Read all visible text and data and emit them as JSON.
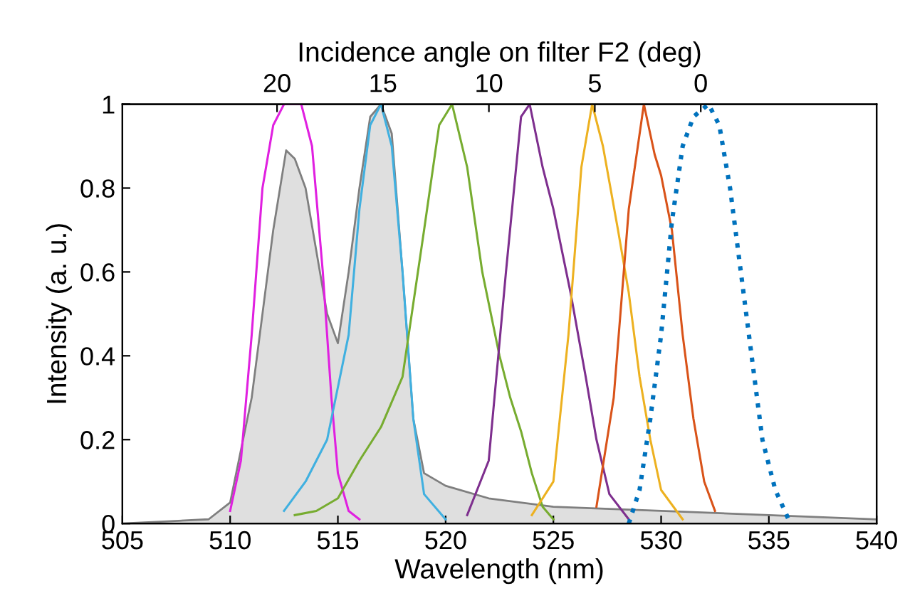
{
  "chart_data": {
    "type": "line",
    "xlabel": "Wavelength (nm)",
    "ylabel": "Intensity (a. u.)",
    "x2label": "Incidence angle on filter F2 (deg)",
    "xlim": [
      505,
      540
    ],
    "xticks": [
      505,
      510,
      515,
      520,
      525,
      530,
      535,
      540
    ],
    "ylim": [
      0,
      1
    ],
    "yticks": [
      0,
      0.2,
      0.4,
      0.6,
      0.8,
      1
    ],
    "x2lim": [
      27.3,
      -8.3
    ],
    "x2ticks": [
      20,
      15,
      10,
      5,
      0
    ],
    "grid": false,
    "series": [
      {
        "type": "area",
        "color": "#7f7f7f",
        "x": [
          505,
          509,
          510,
          511,
          512,
          512.6,
          513,
          513.5,
          514,
          514.5,
          515,
          515.5,
          516,
          516.5,
          517,
          517.5,
          518,
          518.5,
          519,
          520,
          522,
          525,
          530,
          535,
          540
        ],
        "values": [
          0,
          0.01,
          0.05,
          0.3,
          0.7,
          0.89,
          0.87,
          0.8,
          0.65,
          0.5,
          0.43,
          0.6,
          0.8,
          0.97,
          1,
          0.93,
          0.6,
          0.25,
          0.12,
          0.09,
          0.06,
          0.04,
          0.03,
          0.02,
          0.01
        ]
      },
      {
        "color": "#e020e0",
        "x": [
          510,
          510.5,
          511,
          511.5,
          512,
          512.5,
          513.3,
          513.8,
          514.3,
          514.7,
          515,
          515.5,
          516
        ],
        "values": [
          0.03,
          0.15,
          0.45,
          0.8,
          0.95,
          1,
          1,
          0.9,
          0.6,
          0.3,
          0.12,
          0.03,
          0.01
        ]
      },
      {
        "color": "#40b0e0",
        "x": [
          512.5,
          513.5,
          514.5,
          515.5,
          516,
          516.5,
          517,
          517.5,
          518,
          518.5,
          519,
          520
        ],
        "values": [
          0.03,
          0.1,
          0.2,
          0.45,
          0.75,
          0.95,
          1,
          0.9,
          0.6,
          0.25,
          0.07,
          0.01
        ]
      },
      {
        "color": "#77ac30",
        "x": [
          513,
          514,
          515,
          516,
          517,
          518,
          519,
          519.7,
          520.3,
          521,
          521.7,
          522.5,
          523,
          523.5,
          524,
          524.5,
          525
        ],
        "values": [
          0.02,
          0.03,
          0.06,
          0.15,
          0.23,
          0.35,
          0.7,
          0.95,
          1,
          0.85,
          0.6,
          0.4,
          0.3,
          0.22,
          0.12,
          0.04,
          0.01
        ]
      },
      {
        "color": "#7e2f8e",
        "x": [
          521,
          522,
          522.8,
          523.5,
          523.9,
          524.5,
          525,
          525.8,
          526.5,
          527,
          527.6,
          528.5
        ],
        "values": [
          0.02,
          0.15,
          0.6,
          0.97,
          1,
          0.85,
          0.75,
          0.55,
          0.35,
          0.2,
          0.07,
          0.01
        ]
      },
      {
        "color": "#edb120",
        "x": [
          524,
          525,
          525.7,
          526.3,
          526.8,
          527.3,
          528,
          528.5,
          529,
          529.5,
          530,
          531
        ],
        "values": [
          0.02,
          0.1,
          0.45,
          0.85,
          1,
          0.9,
          0.7,
          0.55,
          0.35,
          0.2,
          0.08,
          0.01
        ]
      },
      {
        "color": "#d95319",
        "x": [
          527,
          527.8,
          528.5,
          529.2,
          529.7,
          530,
          530.5,
          531,
          531.5,
          532,
          532.5
        ],
        "values": [
          0.04,
          0.3,
          0.75,
          1,
          0.88,
          0.83,
          0.7,
          0.45,
          0.25,
          0.1,
          0.03
        ]
      },
      {
        "color": "#0072bd",
        "line_style": "dotted",
        "x": [
          528.5,
          529,
          529.5,
          530,
          530.5,
          531,
          531.5,
          532.2,
          532.7,
          533.2,
          533.7,
          534.2,
          534.7,
          535.3,
          536
        ],
        "values": [
          0,
          0.08,
          0.25,
          0.45,
          0.72,
          0.9,
          0.97,
          1,
          0.95,
          0.8,
          0.6,
          0.4,
          0.2,
          0.08,
          0
        ]
      }
    ]
  }
}
